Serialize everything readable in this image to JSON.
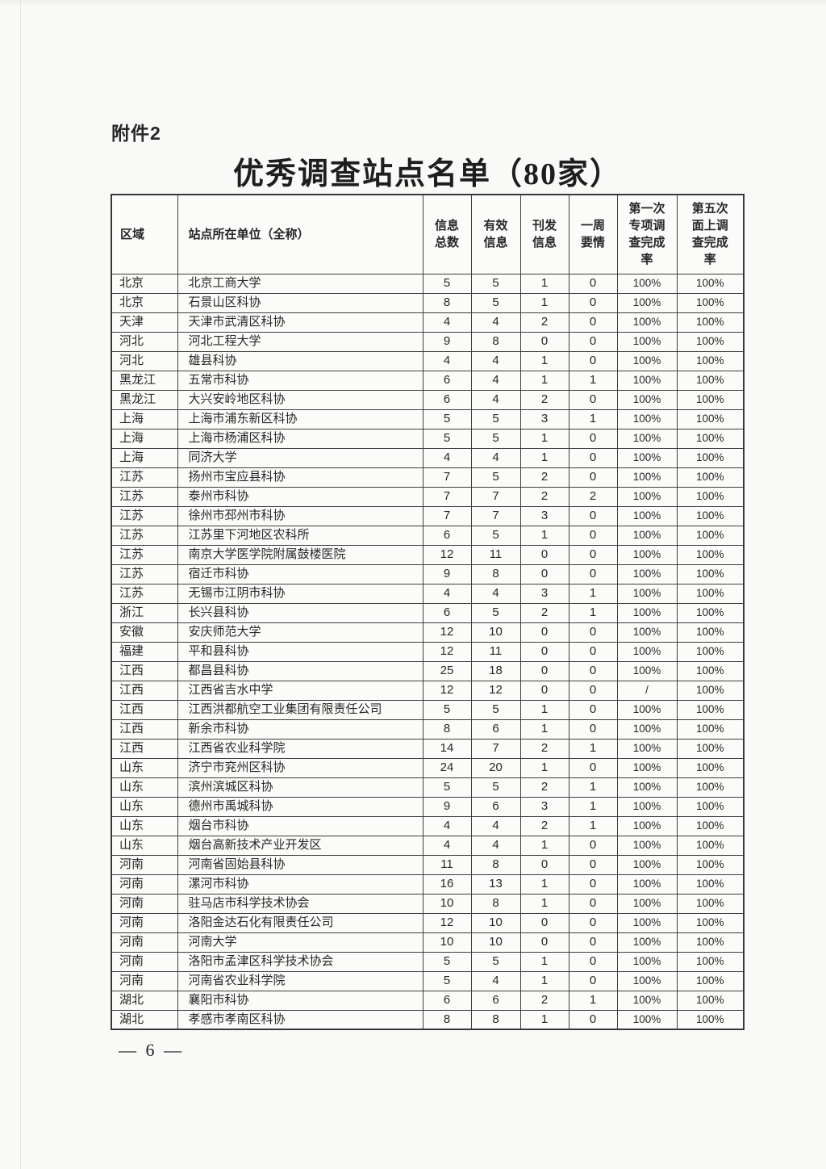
{
  "document": {
    "attachment_label": "附件2",
    "title": "优秀调查站点名单（80家）",
    "page_number": "— 6 —"
  },
  "table": {
    "headers": [
      "区域",
      "站点所在单位（全称）",
      "信息\n总数",
      "有效\n信息",
      "刊发\n信息",
      "一周\n要情",
      "第一次\n专项调\n查完成\n率",
      "第五次\n面上调\n查完成\n率"
    ],
    "rows": [
      [
        "北京",
        "北京工商大学",
        "5",
        "5",
        "1",
        "0",
        "100%",
        "100%"
      ],
      [
        "北京",
        "石景山区科协",
        "8",
        "5",
        "1",
        "0",
        "100%",
        "100%"
      ],
      [
        "天津",
        "天津市武清区科协",
        "4",
        "4",
        "2",
        "0",
        "100%",
        "100%"
      ],
      [
        "河北",
        "河北工程大学",
        "9",
        "8",
        "0",
        "0",
        "100%",
        "100%"
      ],
      [
        "河北",
        "雄县科协",
        "4",
        "4",
        "1",
        "0",
        "100%",
        "100%"
      ],
      [
        "黑龙江",
        "五常市科协",
        "6",
        "4",
        "1",
        "1",
        "100%",
        "100%"
      ],
      [
        "黑龙江",
        "大兴安岭地区科协",
        "6",
        "4",
        "2",
        "0",
        "100%",
        "100%"
      ],
      [
        "上海",
        "上海市浦东新区科协",
        "5",
        "5",
        "3",
        "1",
        "100%",
        "100%"
      ],
      [
        "上海",
        "上海市杨浦区科协",
        "5",
        "5",
        "1",
        "0",
        "100%",
        "100%"
      ],
      [
        "上海",
        "同济大学",
        "4",
        "4",
        "1",
        "0",
        "100%",
        "100%"
      ],
      [
        "江苏",
        "扬州市宝应县科协",
        "7",
        "5",
        "2",
        "0",
        "100%",
        "100%"
      ],
      [
        "江苏",
        "泰州市科协",
        "7",
        "7",
        "2",
        "2",
        "100%",
        "100%"
      ],
      [
        "江苏",
        "徐州市邳州市科协",
        "7",
        "7",
        "3",
        "0",
        "100%",
        "100%"
      ],
      [
        "江苏",
        "江苏里下河地区农科所",
        "6",
        "5",
        "1",
        "0",
        "100%",
        "100%"
      ],
      [
        "江苏",
        "南京大学医学院附属鼓楼医院",
        "12",
        "11",
        "0",
        "0",
        "100%",
        "100%"
      ],
      [
        "江苏",
        "宿迁市科协",
        "9",
        "8",
        "0",
        "0",
        "100%",
        "100%"
      ],
      [
        "江苏",
        "无锡市江阴市科协",
        "4",
        "4",
        "3",
        "1",
        "100%",
        "100%"
      ],
      [
        "浙江",
        "长兴县科协",
        "6",
        "5",
        "2",
        "1",
        "100%",
        "100%"
      ],
      [
        "安徽",
        "安庆师范大学",
        "12",
        "10",
        "0",
        "0",
        "100%",
        "100%"
      ],
      [
        "福建",
        "平和县科协",
        "12",
        "11",
        "0",
        "0",
        "100%",
        "100%"
      ],
      [
        "江西",
        "都昌县科协",
        "25",
        "18",
        "0",
        "0",
        "100%",
        "100%"
      ],
      [
        "江西",
        "江西省吉水中学",
        "12",
        "12",
        "0",
        "0",
        "/",
        "100%"
      ],
      [
        "江西",
        "江西洪都航空工业集团有限责任公司",
        "5",
        "5",
        "1",
        "0",
        "100%",
        "100%"
      ],
      [
        "江西",
        "新余市科协",
        "8",
        "6",
        "1",
        "0",
        "100%",
        "100%"
      ],
      [
        "江西",
        "江西省农业科学院",
        "14",
        "7",
        "2",
        "1",
        "100%",
        "100%"
      ],
      [
        "山东",
        "济宁市兖州区科协",
        "24",
        "20",
        "1",
        "0",
        "100%",
        "100%"
      ],
      [
        "山东",
        "滨州滨城区科协",
        "5",
        "5",
        "2",
        "1",
        "100%",
        "100%"
      ],
      [
        "山东",
        "德州市禹城科协",
        "9",
        "6",
        "3",
        "1",
        "100%",
        "100%"
      ],
      [
        "山东",
        "烟台市科协",
        "4",
        "4",
        "2",
        "1",
        "100%",
        "100%"
      ],
      [
        "山东",
        "烟台高新技术产业开发区",
        "4",
        "4",
        "1",
        "0",
        "100%",
        "100%"
      ],
      [
        "河南",
        "河南省固始县科协",
        "11",
        "8",
        "0",
        "0",
        "100%",
        "100%"
      ],
      [
        "河南",
        "漯河市科协",
        "16",
        "13",
        "1",
        "0",
        "100%",
        "100%"
      ],
      [
        "河南",
        "驻马店市科学技术协会",
        "10",
        "8",
        "1",
        "0",
        "100%",
        "100%"
      ],
      [
        "河南",
        "洛阳金达石化有限责任公司",
        "12",
        "10",
        "0",
        "0",
        "100%",
        "100%"
      ],
      [
        "河南",
        "河南大学",
        "10",
        "10",
        "0",
        "0",
        "100%",
        "100%"
      ],
      [
        "河南",
        "洛阳市孟津区科学技术协会",
        "5",
        "5",
        "1",
        "0",
        "100%",
        "100%"
      ],
      [
        "河南",
        "河南省农业科学院",
        "5",
        "4",
        "1",
        "0",
        "100%",
        "100%"
      ],
      [
        "湖北",
        "襄阳市科协",
        "6",
        "6",
        "2",
        "1",
        "100%",
        "100%"
      ],
      [
        "湖北",
        "孝感市孝南区科协",
        "8",
        "8",
        "1",
        "0",
        "100%",
        "100%"
      ]
    ]
  }
}
